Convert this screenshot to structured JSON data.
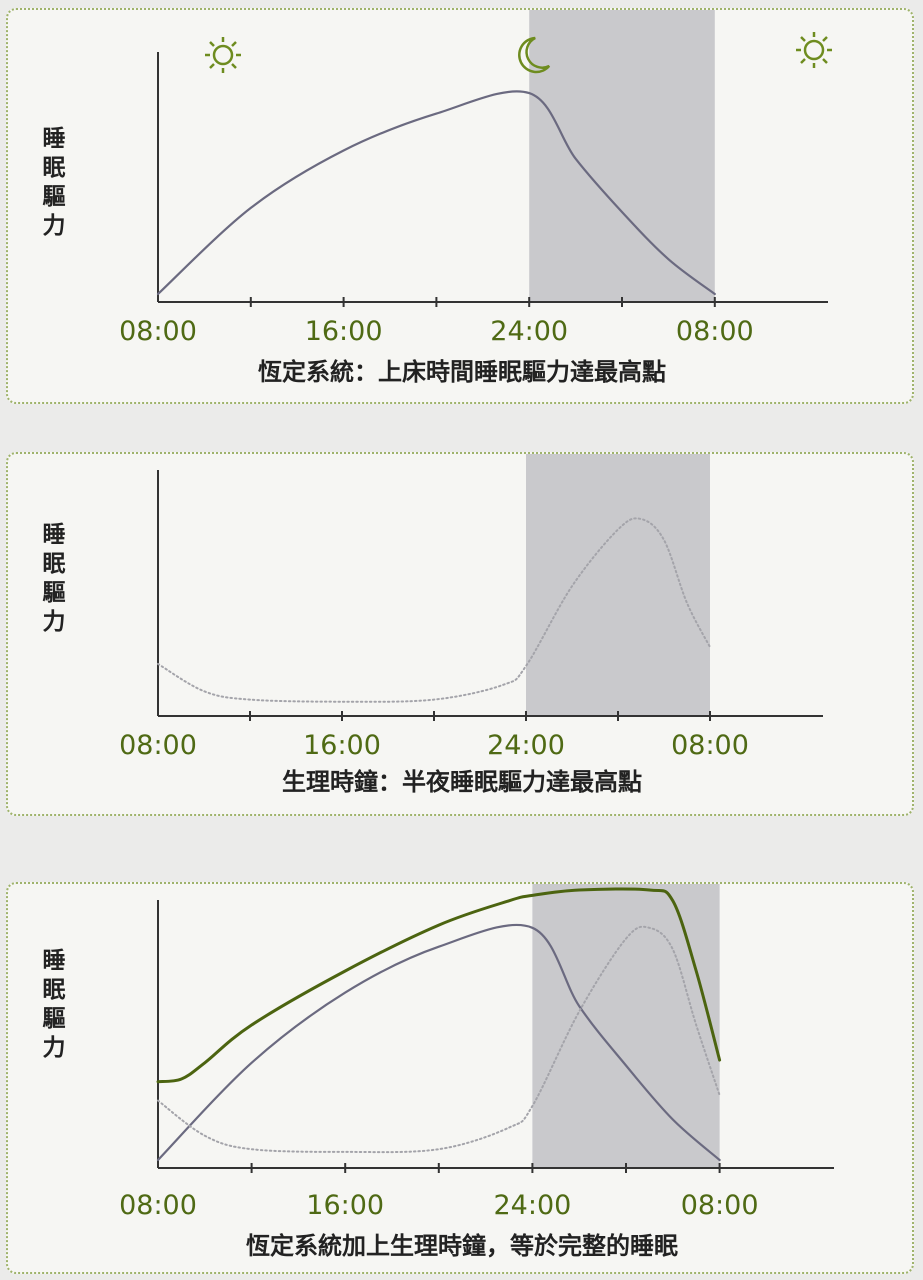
{
  "chart_data": [
    {
      "type": "line",
      "title": "恆定系統：上床時間睡眠驅力達最高點",
      "ylabel": "睡眠驅力",
      "x_tick_labels": [
        "08:00",
        "16:00",
        "24:00",
        "08:00"
      ],
      "x_range_hours": [
        8,
        38
      ],
      "night_band_hours": [
        24,
        32
      ],
      "icons": [
        "sun-icon",
        "moon-icon",
        "sun-icon"
      ],
      "colors": {
        "homeostatic": "#6b6a80",
        "night": "#c9c9cc"
      },
      "series": [
        {
          "key": "homeostatic",
          "style": "solid",
          "x": [
            8,
            12,
            16,
            20,
            24,
            26,
            28,
            30,
            32
          ],
          "y": [
            0.0,
            0.42,
            0.7,
            0.88,
            0.98,
            0.66,
            0.4,
            0.17,
            0.0
          ]
        }
      ]
    },
    {
      "type": "line",
      "title": "生理時鐘：半夜睡眠驅力達最高點",
      "ylabel": "睡眠驅力",
      "x_tick_labels": [
        "08:00",
        "16:00",
        "24:00",
        "08:00"
      ],
      "x_range_hours": [
        8,
        38
      ],
      "night_band_hours": [
        24,
        32
      ],
      "colors": {
        "circadian": "#a4a4aa",
        "night": "#c9c9cc"
      },
      "series": [
        {
          "key": "circadian",
          "style": "dotted",
          "x": [
            8,
            10,
            12,
            16,
            20,
            23,
            24,
            26,
            28,
            29,
            30,
            31,
            32
          ],
          "y": [
            0.21,
            0.08,
            0.04,
            0.03,
            0.04,
            0.11,
            0.2,
            0.58,
            0.85,
            0.9,
            0.8,
            0.5,
            0.29
          ]
        }
      ]
    },
    {
      "type": "line",
      "title": "恆定系統加上生理時鐘，等於完整的睡眠",
      "ylabel": "睡眠驅力",
      "x_tick_labels": [
        "08:00",
        "16:00",
        "24:00",
        "08:00"
      ],
      "x_range_hours": [
        8,
        38
      ],
      "night_band_hours": [
        24,
        32
      ],
      "colors": {
        "homeostatic": "#6b6a80",
        "circadian": "#a4a4aa",
        "combined": "#4c6410",
        "night": "#c9c9cc"
      },
      "series": [
        {
          "key": "homeostatic",
          "style": "solid",
          "x": [
            8,
            12,
            16,
            20,
            24,
            26,
            28,
            30,
            32
          ],
          "y": [
            0.0,
            0.36,
            0.62,
            0.79,
            0.86,
            0.57,
            0.35,
            0.15,
            0.0
          ]
        },
        {
          "key": "circadian",
          "style": "dotted",
          "x": [
            8,
            10,
            12,
            16,
            20,
            23,
            24,
            26,
            28,
            29,
            30,
            31,
            32
          ],
          "y": [
            0.22,
            0.09,
            0.04,
            0.03,
            0.04,
            0.12,
            0.2,
            0.55,
            0.82,
            0.86,
            0.78,
            0.5,
            0.24
          ]
        },
        {
          "key": "combined",
          "style": "solid",
          "x": [
            8,
            9,
            10,
            12,
            16,
            20,
            23,
            24,
            26,
            29,
            30,
            31,
            32
          ],
          "y": [
            0.29,
            0.3,
            0.36,
            0.5,
            0.7,
            0.87,
            0.96,
            0.98,
            1.0,
            1.0,
            0.96,
            0.7,
            0.37
          ]
        }
      ]
    }
  ]
}
